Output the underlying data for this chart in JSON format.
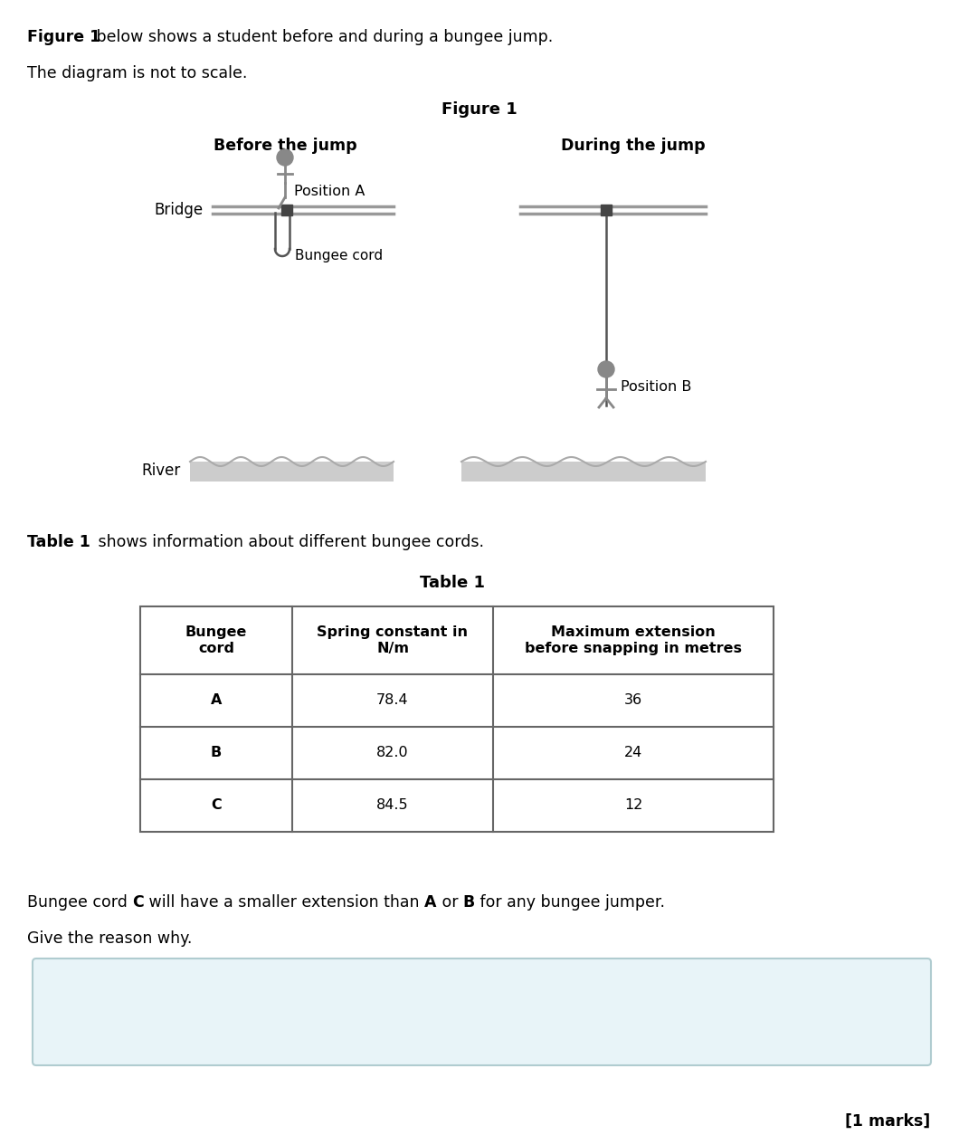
{
  "title_text": "Figure 1",
  "intro_bold": "Figure 1",
  "intro_normal": " below shows a student before and during a bungee jump.",
  "not_to_scale": "The diagram is not to scale.",
  "col1_header": "Before the jump",
  "col2_header": "During the jump",
  "bridge_label": "Bridge",
  "pos_a_label": "Position A",
  "pos_b_label": "Position B",
  "bungee_cord_label": "Bungee cord",
  "river_label": "River",
  "table_title": "Table 1",
  "table_intro_bold": "Table 1",
  "table_intro_normal": " shows information about different bungee cords.",
  "table_headers": [
    "Bungee\ncord",
    "Spring constant in\nN/m",
    "Maximum extension\nbefore snapping in metres"
  ],
  "table_data": [
    [
      "A",
      "78.4",
      "36"
    ],
    [
      "B",
      "82.0",
      "24"
    ],
    [
      "C",
      "84.5",
      "12"
    ]
  ],
  "question_parts": [
    [
      "Bungee cord ",
      false
    ],
    [
      "C",
      true
    ],
    [
      " will have a smaller extension than ",
      false
    ],
    [
      "A",
      true
    ],
    [
      " or ",
      false
    ],
    [
      "B",
      true
    ],
    [
      " for any bungee jumper.",
      false
    ]
  ],
  "give_reason": "Give the reason why.",
  "marks_text": "[1 marks]",
  "bg_color": "#ffffff",
  "answer_box_color": "#e8f4f8",
  "answer_box_border": "#b0ccd0",
  "table_border_color": "#666666",
  "text_color": "#000000",
  "bridge_color": "#999999",
  "cord_color": "#555555",
  "person_color": "#888888",
  "river_fill": "#cccccc",
  "river_wave": "#aaaaaa"
}
